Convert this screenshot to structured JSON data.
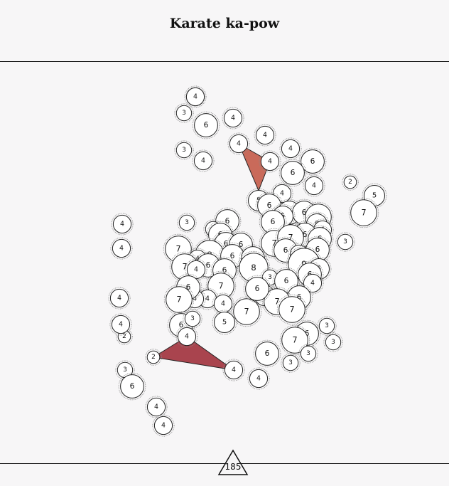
{
  "title": "Karate ka-pow",
  "footer_value": "185",
  "colors": {
    "background": "#f7f6f7",
    "node_fill": "#ffffff",
    "stroke": "#222222",
    "triangle_upper": "#c96a5a",
    "triangle_lower": "#a9444e"
  },
  "nodes": [
    {
      "label": "3"
    },
    {
      "label": "3"
    },
    {
      "label": "6"
    },
    {
      "label": "4"
    },
    {
      "label": "4"
    },
    {
      "label": "3"
    },
    {
      "label": "4"
    },
    {
      "label": "4"
    },
    {
      "label": "4"
    },
    {
      "label": "4"
    },
    {
      "label": "6"
    },
    {
      "label": "6"
    },
    {
      "label": "4"
    },
    {
      "label": "2"
    },
    {
      "label": "5"
    },
    {
      "label": "7"
    },
    {
      "label": "4"
    },
    {
      "label": "5"
    },
    {
      "label": "6"
    },
    {
      "label": "6"
    },
    {
      "label": "6"
    },
    {
      "label": "7"
    },
    {
      "label": "5"
    },
    {
      "label": "6"
    },
    {
      "label": "5"
    },
    {
      "label": "4"
    },
    {
      "label": "4"
    },
    {
      "label": "4"
    },
    {
      "label": "3"
    },
    {
      "label": "6"
    },
    {
      "label": "3"
    },
    {
      "label": "6"
    },
    {
      "label": "3"
    },
    {
      "label": "7"
    },
    {
      "label": "6"
    },
    {
      "label": "6"
    },
    {
      "label": "7"
    },
    {
      "label": "6"
    },
    {
      "label": "6"
    },
    {
      "label": "7"
    },
    {
      "label": "6"
    },
    {
      "label": "4"
    },
    {
      "label": "6"
    },
    {
      "label": "8"
    },
    {
      "label": "4"
    },
    {
      "label": "7"
    },
    {
      "label": "6"
    },
    {
      "label": "4"
    },
    {
      "label": "6"
    },
    {
      "label": "6"
    },
    {
      "label": "8"
    },
    {
      "label": "3"
    },
    {
      "label": "9"
    },
    {
      "label": "5"
    },
    {
      "label": "6"
    },
    {
      "label": "6"
    },
    {
      "label": "4"
    },
    {
      "label": "6"
    },
    {
      "label": "7"
    },
    {
      "label": "5"
    },
    {
      "label": "4"
    },
    {
      "label": "4"
    },
    {
      "label": "6"
    },
    {
      "label": "6"
    },
    {
      "label": "7"
    },
    {
      "label": "4"
    },
    {
      "label": "7"
    },
    {
      "label": "7"
    },
    {
      "label": "7"
    },
    {
      "label": "6"
    },
    {
      "label": "6"
    },
    {
      "label": "3"
    },
    {
      "label": "4"
    },
    {
      "label": "6"
    },
    {
      "label": "3"
    },
    {
      "label": "4"
    },
    {
      "label": "2"
    },
    {
      "label": "3"
    },
    {
      "label": "7"
    },
    {
      "label": "6"
    },
    {
      "label": "3"
    },
    {
      "label": "6"
    },
    {
      "label": "4"
    },
    {
      "label": "4"
    },
    {
      "label": "2"
    },
    {
      "label": "4"
    },
    {
      "label": "4"
    },
    {
      "label": "3"
    },
    {
      "label": "3"
    },
    {
      "label": "5"
    },
    {
      "label": "4"
    },
    {
      "label": "4"
    }
  ]
}
